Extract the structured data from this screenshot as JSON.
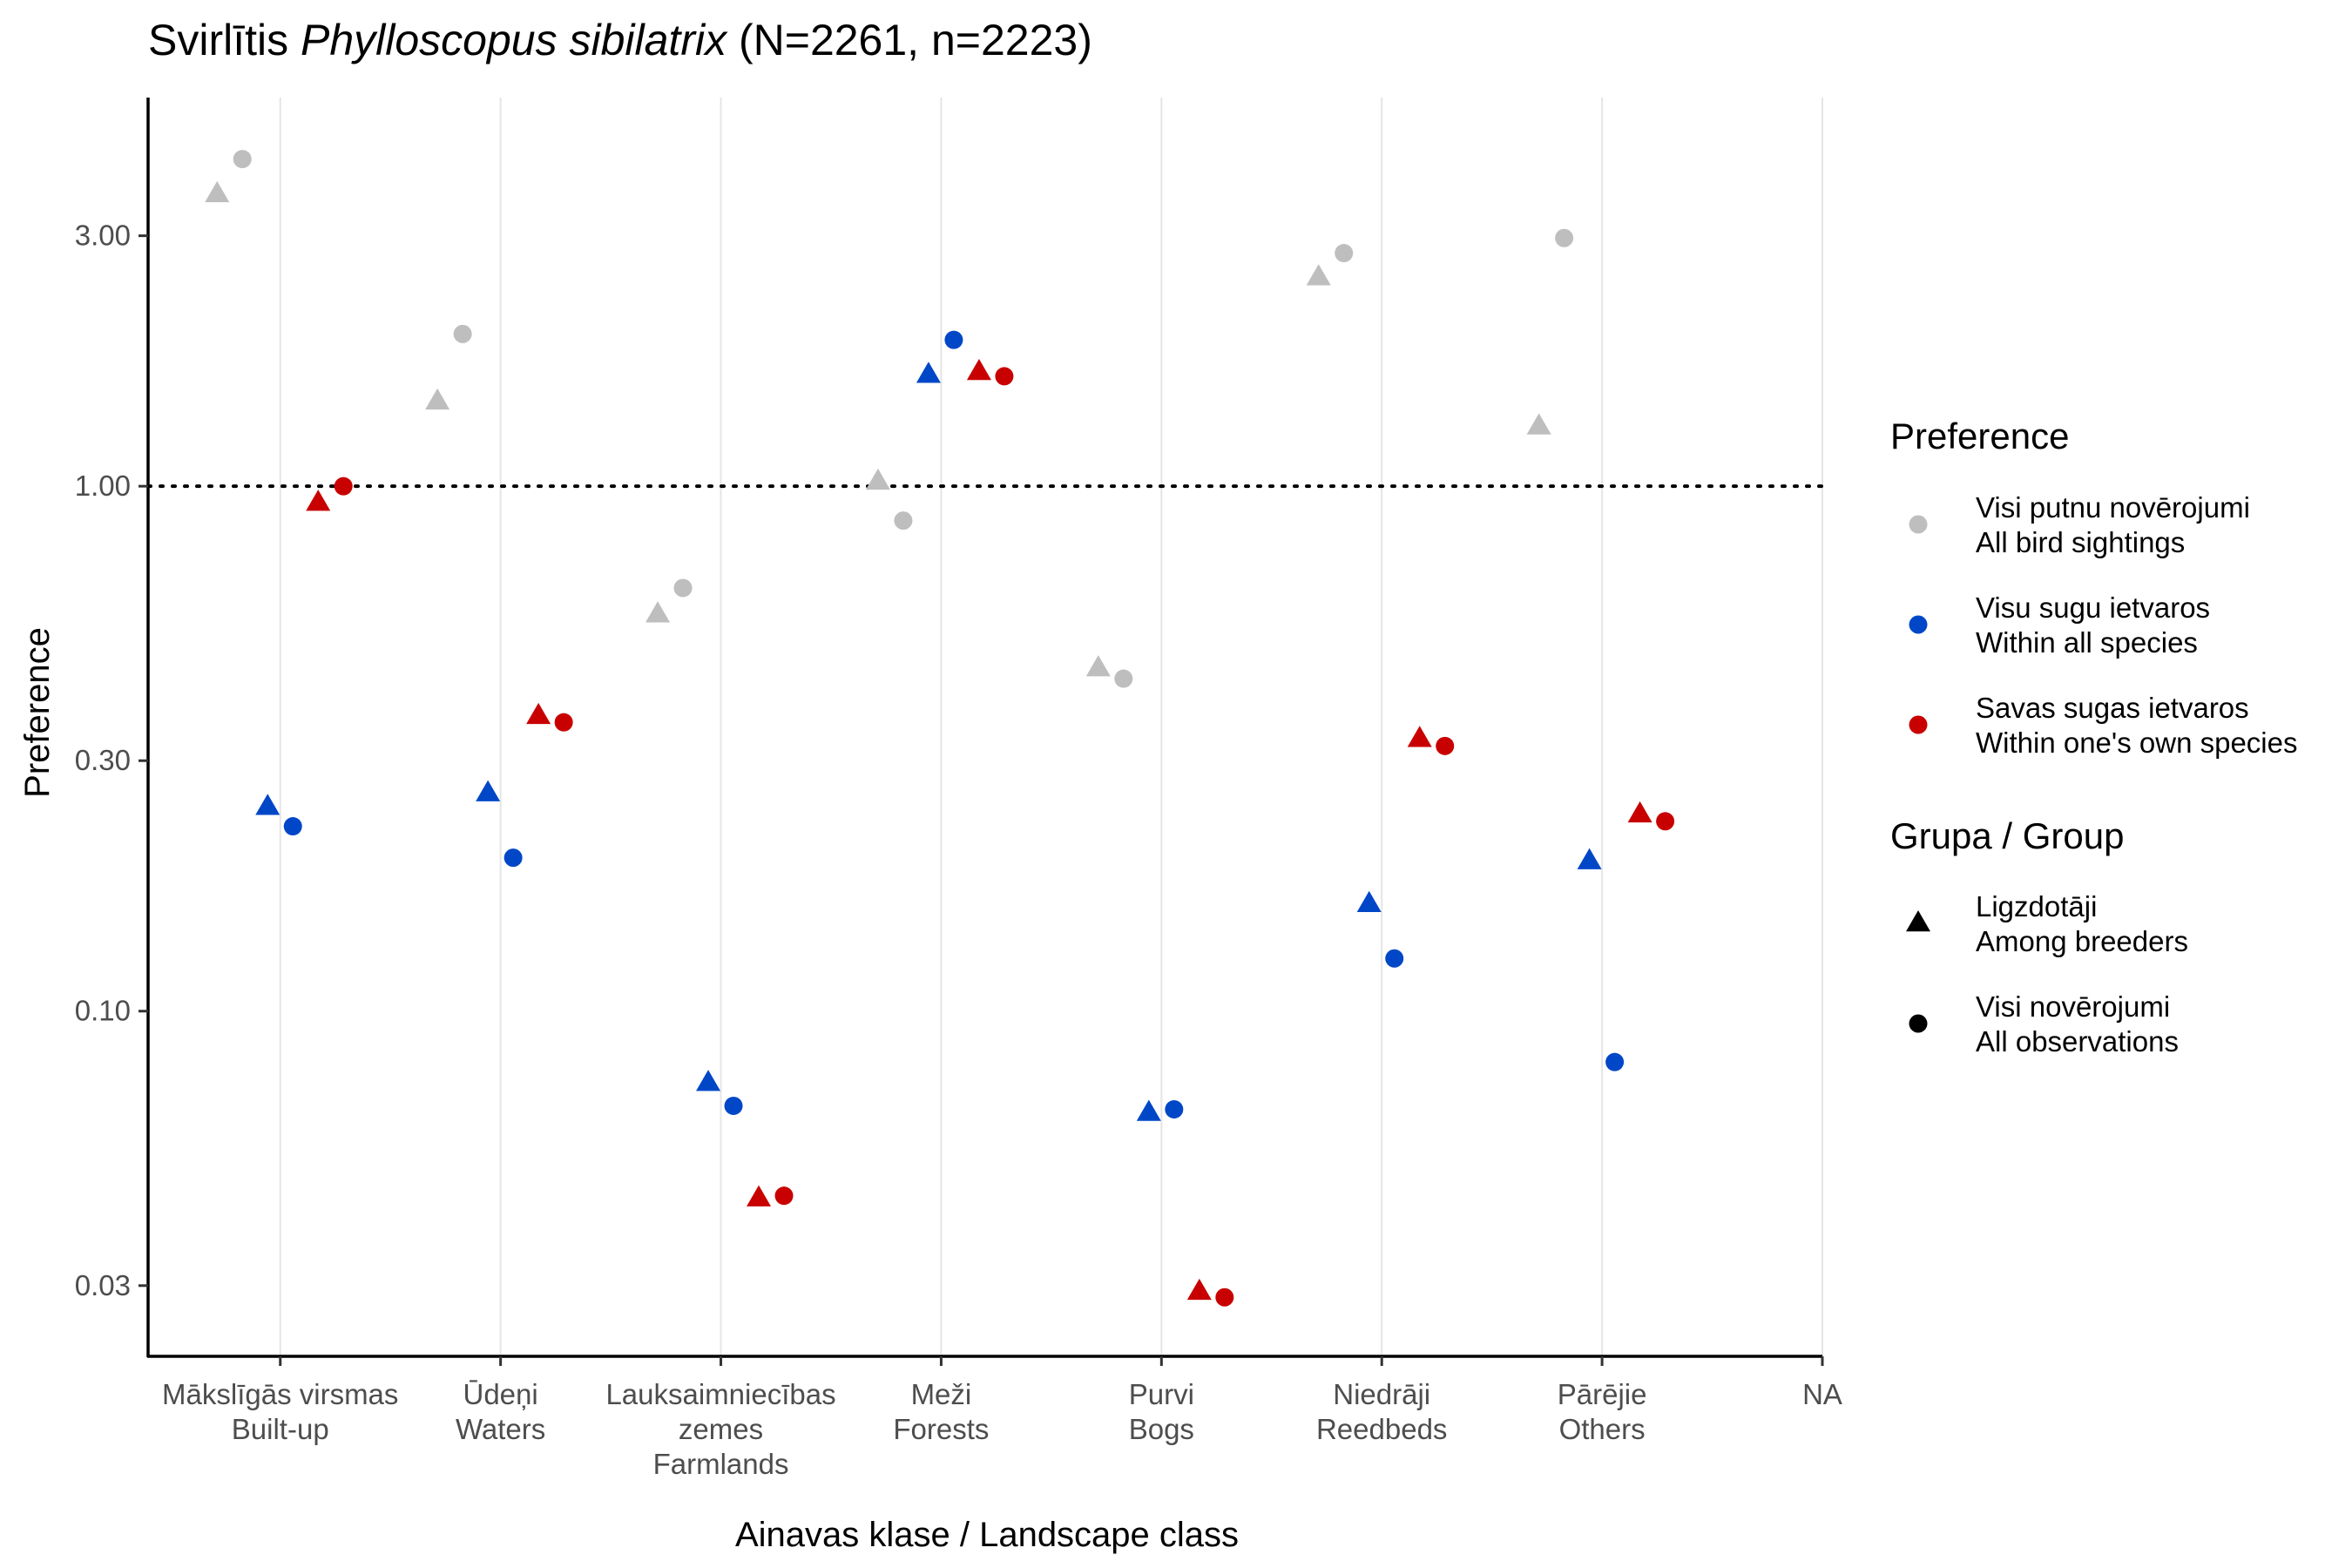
{
  "chart_data": {
    "type": "scatter",
    "title": {
      "prefix": "Svirlītis ",
      "species": "Phylloscopus sibilatrix",
      "suffix": " (N=2261, n=2223)"
    },
    "xlabel": "Ainavas klase / Landscape class",
    "ylabel": "Preference",
    "y_scale": "log",
    "ylim": [
      0.022,
      5.5
    ],
    "y_ticks": [
      {
        "value": 0.03,
        "label": "0.03"
      },
      {
        "value": 0.1,
        "label": "0.10"
      },
      {
        "value": 0.3,
        "label": "0.30"
      },
      {
        "value": 1.0,
        "label": "1.00"
      },
      {
        "value": 3.0,
        "label": "3.00"
      }
    ],
    "reference_line": {
      "value": 1.0,
      "style": "dotted"
    },
    "grid": {
      "vertical": true,
      "horizontal": false
    },
    "categories": [
      {
        "lines": [
          "Mākslīgās virsmas",
          "Built-up"
        ]
      },
      {
        "lines": [
          "Ūdeņi",
          "Waters"
        ]
      },
      {
        "lines": [
          "Lauksaimniecības",
          "zemes",
          "Farmlands"
        ]
      },
      {
        "lines": [
          "Meži",
          "Forests"
        ]
      },
      {
        "lines": [
          "Purvi",
          "Bogs"
        ]
      },
      {
        "lines": [
          "Niedrāji",
          "Reedbeds"
        ]
      },
      {
        "lines": [
          "Pārējie",
          "Others"
        ]
      },
      {
        "lines": [
          "NA"
        ]
      }
    ],
    "series": [
      {
        "preference": "all_birds",
        "group": "breeders",
        "values": [
          3.6,
          1.45,
          0.57,
          1.02,
          0.45,
          2.5,
          1.3,
          null
        ]
      },
      {
        "preference": "all_birds",
        "group": "all",
        "values": [
          4.2,
          1.95,
          0.64,
          0.86,
          0.43,
          2.78,
          2.97,
          null
        ]
      },
      {
        "preference": "all_species",
        "group": "breeders",
        "values": [
          0.245,
          0.26,
          0.073,
          1.63,
          0.064,
          0.16,
          0.193,
          null
        ]
      },
      {
        "preference": "all_species",
        "group": "all",
        "values": [
          0.225,
          0.196,
          0.066,
          1.9,
          0.065,
          0.126,
          0.08,
          null
        ]
      },
      {
        "preference": "own_species",
        "group": "breeders",
        "values": [
          0.93,
          0.365,
          0.044,
          1.65,
          0.0292,
          0.33,
          0.237,
          null
        ]
      },
      {
        "preference": "own_species",
        "group": "all",
        "values": [
          1.0,
          0.355,
          0.0445,
          1.62,
          0.0285,
          0.32,
          0.23,
          null
        ]
      }
    ],
    "legend": {
      "placement": "right",
      "preference": {
        "title": "Preference",
        "items": [
          {
            "key": "all_birds",
            "color": "#bebebe",
            "lines": [
              "Visi putnu novērojumi",
              "All bird sightings"
            ]
          },
          {
            "key": "all_species",
            "color": "#0047c8",
            "lines": [
              "Visu sugu ietvaros",
              "Within all species"
            ]
          },
          {
            "key": "own_species",
            "color": "#c80000",
            "lines": [
              "Savas sugas ietvaros",
              "Within one's own species"
            ]
          }
        ]
      },
      "group": {
        "title": "Grupa / Group",
        "items": [
          {
            "key": "breeders",
            "shape": "triangle",
            "lines": [
              "Ligzdotāji",
              "Among breeders"
            ]
          },
          {
            "key": "all",
            "shape": "circle",
            "lines": [
              "Visi novērojumi",
              "All observations"
            ]
          }
        ]
      }
    }
  }
}
